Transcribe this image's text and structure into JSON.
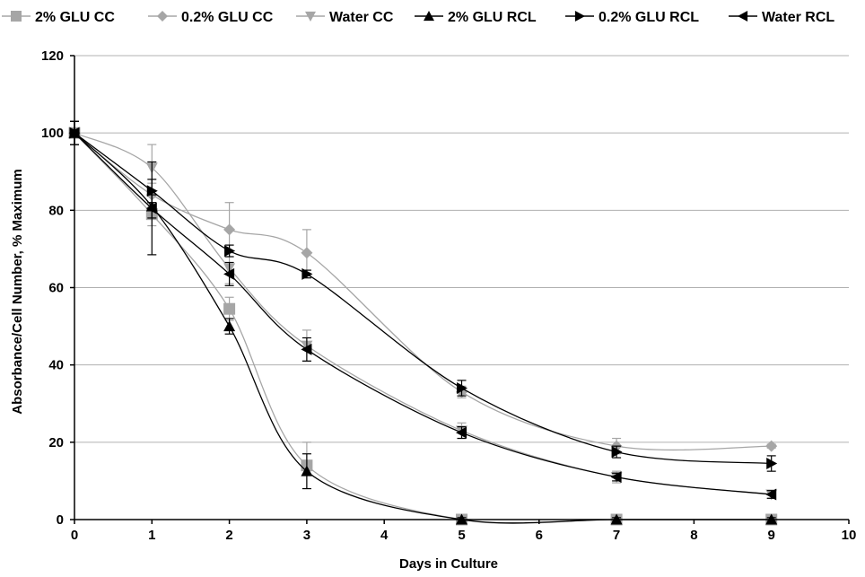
{
  "chart_data": {
    "type": "line",
    "title": "",
    "xlabel": "Days in Culture",
    "ylabel": "Absorbance/Cell Number, % Maximum",
    "xlim": [
      0,
      10
    ],
    "ylim": [
      0,
      120
    ],
    "xticks": [
      "0",
      "1",
      "2",
      "3",
      "4",
      "5",
      "6",
      "7",
      "8",
      "9",
      "10"
    ],
    "yticks": [
      "0",
      "20",
      "40",
      "60",
      "80",
      "100",
      "120"
    ],
    "grid": "horizontal",
    "legend": "top",
    "series": [
      {
        "name": "2% GLU CC",
        "color": "#a6a6a6",
        "marker": "square",
        "x": [
          0,
          1,
          2,
          3,
          5,
          7,
          9
        ],
        "y": [
          100,
          79,
          54.5,
          14,
          0,
          0,
          0
        ],
        "err": [
          3,
          3,
          3,
          6,
          1,
          1,
          0.5
        ]
      },
      {
        "name": "0.2% GLU CC",
        "color": "#a6a6a6",
        "marker": "diamond",
        "x": [
          0,
          1,
          2,
          3,
          5,
          7,
          9
        ],
        "y": [
          100,
          84,
          75,
          69,
          33,
          19,
          19
        ],
        "err": [
          3,
          3,
          7,
          6,
          1.5,
          2,
          0.5
        ]
      },
      {
        "name": "Water CC",
        "color": "#a6a6a6",
        "marker": "triangle-down",
        "x": [
          0,
          1,
          2,
          3,
          5,
          7,
          9
        ],
        "y": [
          100,
          91,
          65,
          45,
          23,
          11,
          6.5
        ],
        "err": [
          3,
          6,
          4,
          4,
          2,
          1.5,
          1
        ]
      },
      {
        "name": "2% GLU RCL",
        "color": "#000000",
        "marker": "triangle-up",
        "x": [
          0,
          1,
          2,
          3,
          5,
          7,
          9
        ],
        "y": [
          100,
          81,
          50,
          12.5,
          0,
          0,
          0
        ],
        "err": [
          3,
          3,
          2,
          4.5,
          0.5,
          0.5,
          0.5
        ]
      },
      {
        "name": "0.2% GLU RCL",
        "color": "#000000",
        "marker": "triangle-right",
        "x": [
          0,
          1,
          2,
          3,
          5,
          7,
          9
        ],
        "y": [
          100,
          85,
          69.5,
          63.5,
          34,
          17.5,
          14.5
        ],
        "err": [
          3,
          3,
          1.5,
          1,
          2,
          1.5,
          2
        ]
      },
      {
        "name": "Water RCL",
        "color": "#000000",
        "marker": "triangle-left",
        "x": [
          0,
          1,
          2,
          3,
          5,
          7,
          9
        ],
        "y": [
          100,
          80.5,
          63.5,
          44,
          22.5,
          11,
          6.5
        ],
        "err": [
          3,
          12,
          3,
          3,
          1.5,
          1,
          1
        ]
      }
    ]
  }
}
